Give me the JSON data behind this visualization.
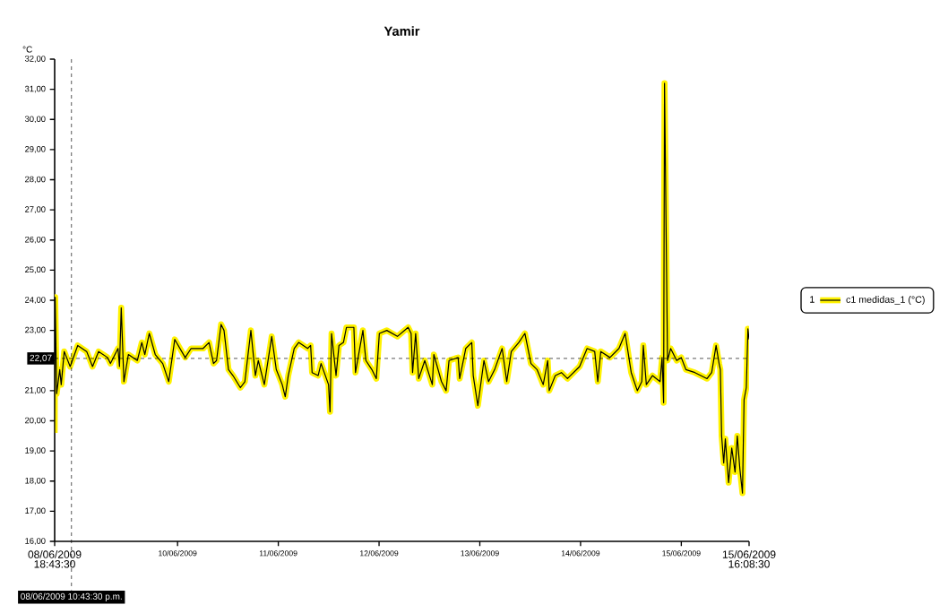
{
  "chart_data": {
    "type": "line",
    "title": "Yamir",
    "ylabel": "°C",
    "legend_title": "1",
    "legend": "right",
    "marker": "none",
    "line_style": "solid",
    "xlim": [
      "2009-06-08T18:43:30",
      "2009-06-15T16:08:30"
    ],
    "ylim": [
      16,
      32
    ],
    "xticks": [
      {
        "value": "2009-06-08T18:43:30",
        "label": "08/06/2009 18:43:30"
      },
      {
        "value": "2009-06-10",
        "label": "10/06/2009"
      },
      {
        "value": "2009-06-11",
        "label": "11/06/2009"
      },
      {
        "value": "2009-06-12",
        "label": "12/06/2009"
      },
      {
        "value": "2009-06-13",
        "label": "13/06/2009"
      },
      {
        "value": "2009-06-14",
        "label": "14/06/2009"
      },
      {
        "value": "2009-06-15",
        "label": "15/06/2009"
      },
      {
        "value": "2009-06-15T16:08:30",
        "label": "15/06/2009 16:08:30"
      }
    ],
    "yticks": [
      {
        "value": 16,
        "label": "16,00"
      },
      {
        "value": 17,
        "label": "17,00"
      },
      {
        "value": 18,
        "label": "18,00"
      },
      {
        "value": 19,
        "label": "19,00"
      },
      {
        "value": 20,
        "label": "20,00"
      },
      {
        "value": 21,
        "label": "21,00"
      },
      {
        "value": 22,
        "label": null
      },
      {
        "value": 23,
        "label": "23,00"
      },
      {
        "value": 24,
        "label": "24,00"
      },
      {
        "value": 25,
        "label": "25,00"
      },
      {
        "value": 26,
        "label": "26,00"
      },
      {
        "value": 27,
        "label": "27,00"
      },
      {
        "value": 28,
        "label": "28,00"
      },
      {
        "value": 29,
        "label": "29,00"
      },
      {
        "value": 30,
        "label": "30,00"
      },
      {
        "value": 31,
        "label": "31,00"
      },
      {
        "value": 32,
        "label": "32,00"
      }
    ],
    "ref_lines": [
      {
        "axis": "y",
        "value": 22.07,
        "label": "22,07",
        "color": "#000000",
        "line_style": "dashed"
      },
      {
        "axis": "x",
        "value": "2009-06-08T22:43:30",
        "label": "08/06/2009 10:43:30 p.m.",
        "color": "#000000",
        "line_style": "dashed"
      }
    ],
    "series": [
      {
        "name": "c1 medidas_1 (°C)",
        "color": "#000000",
        "x": [
          "2009-06-08T18:43:30",
          "2009-06-08T18:51",
          "2009-06-08T19:12",
          "2009-06-08T19:56",
          "2009-06-08T20:17",
          "2009-06-08T21:00",
          "2009-06-08T22:25",
          "2009-06-09T00:13",
          "2009-06-09T02:21",
          "2009-06-09T03:45",
          "2009-06-09T05:11",
          "2009-06-09T07:19",
          "2009-06-09T08:01",
          "2009-06-09T09:49",
          "2009-06-09T10:10",
          "2009-06-09T10:35",
          "2009-06-09T11:13",
          "2009-06-09T12:17",
          "2009-06-09T14:25",
          "2009-06-09T15:29",
          "2009-06-09T16:12",
          "2009-06-09T17:16",
          "2009-06-09T18:41",
          "2009-06-09T20:28",
          "2009-06-09T21:54",
          "2009-06-09T23:20",
          "2009-06-10T01:49",
          "2009-06-10T03:14",
          "2009-06-10T06:05",
          "2009-06-10T07:30",
          "2009-06-10T08:34",
          "2009-06-10T09:17",
          "2009-06-10T10:22",
          "2009-06-10T11:04",
          "2009-06-10T12:08",
          "2009-06-10T13:12",
          "2009-06-10T14:58",
          "2009-06-10T16:02",
          "2009-06-10T17:28",
          "2009-06-10T18:32",
          "2009-06-10T19:14",
          "2009-06-10T20:40",
          "2009-06-10T22:26",
          "2009-06-10T23:31",
          "2009-06-11T00:56",
          "2009-06-11T01:39",
          "2009-06-11T02:22",
          "2009-06-11T03:47",
          "2009-06-11T04:51",
          "2009-06-11T06:59",
          "2009-06-11T07:42",
          "2009-06-11T08:03",
          "2009-06-11T09:29",
          "2009-06-11T10:11",
          "2009-06-11T11:58",
          "2009-06-11T12:19",
          "2009-06-11T12:41",
          "2009-06-11T13:45",
          "2009-06-11T14:27",
          "2009-06-11T15:31",
          "2009-06-11T16:14",
          "2009-06-11T18:00",
          "2009-06-11T18:23",
          "2009-06-11T20:09",
          "2009-06-11T20:52",
          "2009-06-11T22:17",
          "2009-06-11T23:21",
          "2009-06-12T00:04",
          "2009-06-12T01:51",
          "2009-06-12T04:22",
          "2009-06-12T06:55",
          "2009-06-12T07:38",
          "2009-06-12T07:59",
          "2009-06-12T08:43",
          "2009-06-12T09:27",
          "2009-06-12T10:53",
          "2009-06-12T12:41",
          "2009-06-12T13:03",
          "2009-06-12T14:52",
          "2009-06-12T15:58",
          "2009-06-12T16:40",
          "2009-06-12T18:50",
          "2009-06-12T19:12",
          "2009-06-12T20:39",
          "2009-06-12T22:05",
          "2009-06-12T22:26",
          "2009-06-12T23:32",
          "2009-06-13T00:59",
          "2009-06-13T02:05",
          "2009-06-13T03:32",
          "2009-06-13T05:19",
          "2009-06-13T06:25",
          "2009-06-13T07:30",
          "2009-06-13T09:17",
          "2009-06-13T10:44",
          "2009-06-13T12:11",
          "2009-06-13T13:38",
          "2009-06-13T15:06",
          "2009-06-13T16:10",
          "2009-06-13T16:32",
          "2009-06-13T17:59",
          "2009-06-13T19:26",
          "2009-06-13T20:53",
          "2009-06-13T23:46",
          "2009-06-14T01:34",
          "2009-06-14T03:22",
          "2009-06-14T04:06",
          "2009-06-14T04:49",
          "2009-06-14T07:00",
          "2009-06-14T09:09",
          "2009-06-14T10:37",
          "2009-06-14T12:04",
          "2009-06-14T13:31",
          "2009-06-14T14:35",
          "2009-06-14T14:57",
          "2009-06-14T15:40",
          "2009-06-14T17:07",
          "2009-06-14T18:56",
          "2009-06-14T19:25",
          "2009-06-14T19:47",
          "2009-06-14T20:00",
          "2009-06-14T20:43",
          "2009-06-14T21:27",
          "2009-06-14T22:54",
          "2009-06-14T23:59",
          "2009-06-15T01:05",
          "2009-06-15T03:14",
          "2009-06-15T06:08",
          "2009-06-15T07:14",
          "2009-06-15T08:17",
          "2009-06-15T09:00",
          "2009-06-15T09:18",
          "2009-06-15T09:36",
          "2009-06-15T10:06",
          "2009-06-15T10:29",
          "2009-06-15T11:16",
          "2009-06-15T12:01",
          "2009-06-15T12:48",
          "2009-06-15T13:20",
          "2009-06-15T13:57",
          "2009-06-15T14:34",
          "2009-06-15T14:57",
          "2009-06-15T15:29",
          "2009-06-15T15:52",
          "2009-06-15T16:08:30"
        ],
        "values": [
          19.6,
          24.1,
          20.9,
          21.7,
          21.2,
          22.3,
          21.8,
          22.5,
          22.3,
          21.8,
          22.3,
          22.1,
          21.9,
          22.4,
          21.8,
          23.75,
          21.3,
          22.2,
          22.0,
          22.6,
          22.2,
          22.9,
          22.2,
          21.9,
          21.3,
          22.7,
          22.1,
          22.4,
          22.4,
          22.6,
          21.9,
          22.0,
          23.2,
          23.0,
          21.7,
          21.5,
          21.1,
          21.3,
          23.0,
          21.5,
          22.0,
          21.2,
          22.8,
          21.7,
          21.2,
          20.8,
          21.5,
          22.4,
          22.6,
          22.4,
          22.5,
          21.6,
          21.5,
          21.9,
          21.2,
          20.3,
          22.9,
          21.5,
          22.5,
          22.6,
          23.1,
          23.1,
          21.6,
          23.0,
          22.0,
          21.7,
          21.4,
          22.9,
          23.0,
          22.8,
          23.1,
          22.9,
          21.6,
          22.9,
          21.4,
          22.0,
          21.2,
          22.2,
          21.3,
          21.0,
          22.0,
          22.1,
          21.4,
          22.4,
          22.6,
          21.5,
          20.5,
          22.0,
          21.3,
          21.7,
          22.4,
          21.3,
          22.3,
          22.6,
          22.9,
          21.9,
          21.7,
          21.2,
          22.0,
          21.0,
          21.5,
          21.6,
          21.4,
          21.8,
          22.4,
          22.3,
          21.3,
          22.3,
          22.1,
          22.4,
          22.9,
          21.6,
          21.0,
          21.3,
          22.5,
          21.2,
          21.5,
          21.3,
          22.1,
          20.6,
          31.2,
          22.0,
          22.4,
          22.0,
          22.1,
          21.7,
          21.6,
          21.4,
          21.6,
          22.5,
          21.9,
          21.7,
          19.5,
          18.6,
          19.4,
          17.95,
          19.1,
          18.3,
          19.5,
          18.4,
          17.6,
          20.7,
          21.1,
          23.05,
          22.7
        ]
      }
    ]
  }
}
